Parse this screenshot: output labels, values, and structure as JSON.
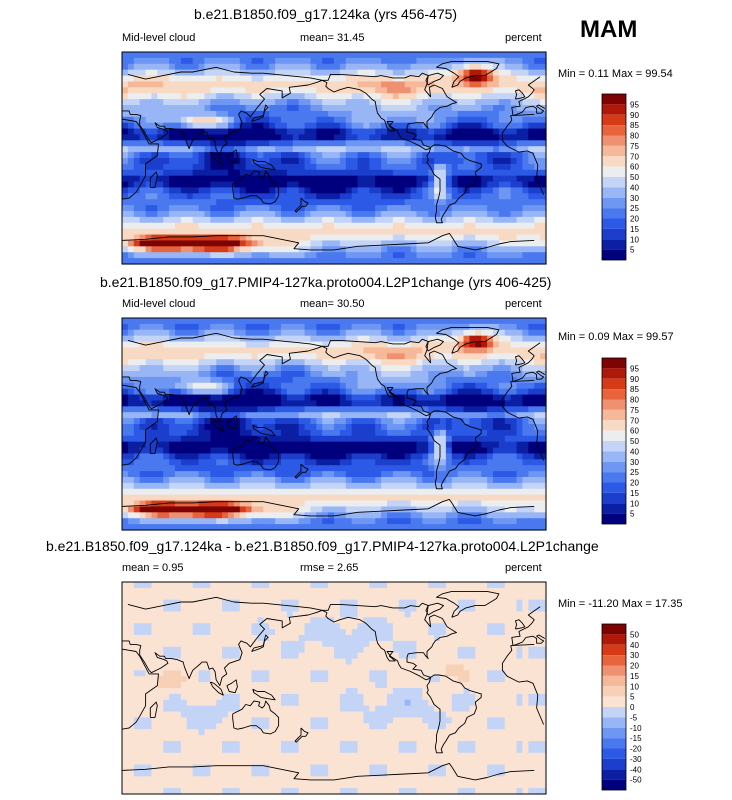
{
  "season": "MAM",
  "panels": [
    {
      "title": "b.e21.B1850.f09_g17.124ka (yrs 456-475)",
      "left_label": "Mid-level cloud",
      "mid_label": "mean=  31.45",
      "units": "percent",
      "minmax": "Min =   0.11 Max =  99.54"
    },
    {
      "title": "b.e21.B1850.f09_g17.PMIP4-127ka.proto004.L2P1change (yrs 406-425)",
      "left_label": "Mid-level cloud",
      "mid_label": "mean=  30.50",
      "units": "percent",
      "minmax": "Min =   0.09 Max =  99.57"
    },
    {
      "title": "b.e21.B1850.f09_g17.124ka - b.e21.B1850.f09_g17.PMIP4-127ka.proto004.L2P1change",
      "left_label": "mean =    0.95",
      "mid_label": "rmse =    2.65",
      "units": "percent",
      "minmax": "Min = -11.20 Max =  17.35"
    }
  ],
  "chart_data": [
    {
      "type": "heatmap",
      "subtype": "global lat-lon filled contour map",
      "title": "b.e21.B1850.f09_g17.124ka (yrs 456-475)",
      "variable": "Mid-level cloud",
      "units": "percent",
      "mean": 31.45,
      "min": 0.11,
      "max": 99.54,
      "colorbar_levels": [
        5,
        10,
        15,
        20,
        25,
        30,
        40,
        50,
        60,
        70,
        75,
        80,
        85,
        90,
        95
      ],
      "colorbar_colors": [
        "#00007f",
        "#0a1fa3",
        "#1b3ecc",
        "#2c5ae6",
        "#4a79ef",
        "#6e97f3",
        "#98b6f6",
        "#c3d4f6",
        "#ecedef",
        "#f8d9c4",
        "#f5b899",
        "#ef9070",
        "#e8643d",
        "#d63a17",
        "#b0180a",
        "#7d0402"
      ]
    },
    {
      "type": "heatmap",
      "subtype": "global lat-lon filled contour map",
      "title": "b.e21.B1850.f09_g17.PMIP4-127ka.proto004.L2P1change (yrs 406-425)",
      "variable": "Mid-level cloud",
      "units": "percent",
      "mean": 30.5,
      "min": 0.09,
      "max": 99.57,
      "colorbar_levels": [
        5,
        10,
        15,
        20,
        25,
        30,
        40,
        50,
        60,
        70,
        75,
        80,
        85,
        90,
        95
      ],
      "colorbar_colors": [
        "#00007f",
        "#0a1fa3",
        "#1b3ecc",
        "#2c5ae6",
        "#4a79ef",
        "#6e97f3",
        "#98b6f6",
        "#c3d4f6",
        "#ecedef",
        "#f8d9c4",
        "#f5b899",
        "#ef9070",
        "#e8643d",
        "#d63a17",
        "#b0180a",
        "#7d0402"
      ]
    },
    {
      "type": "heatmap",
      "subtype": "global lat-lon filled contour map (difference)",
      "title": "b.e21.B1850.f09_g17.124ka - b.e21.B1850.f09_g17.PMIP4-127ka.proto004.L2P1change",
      "units": "percent",
      "mean": 0.95,
      "rmse": 2.65,
      "min": -11.2,
      "max": 17.35,
      "colorbar_levels": [
        -50,
        -40,
        -30,
        -20,
        -15,
        -10,
        -5,
        0,
        5,
        10,
        15,
        20,
        30,
        40,
        50
      ],
      "colorbar_colors": [
        "#00007f",
        "#0a1fa3",
        "#1b3ecc",
        "#2c5ae6",
        "#4a79ef",
        "#6e97f3",
        "#98b6f6",
        "#c3d4f6",
        "#fbe3d3",
        "#f8d0b6",
        "#f5b899",
        "#ef9070",
        "#e8643d",
        "#d63a17",
        "#b0180a",
        "#7d0402"
      ]
    }
  ]
}
